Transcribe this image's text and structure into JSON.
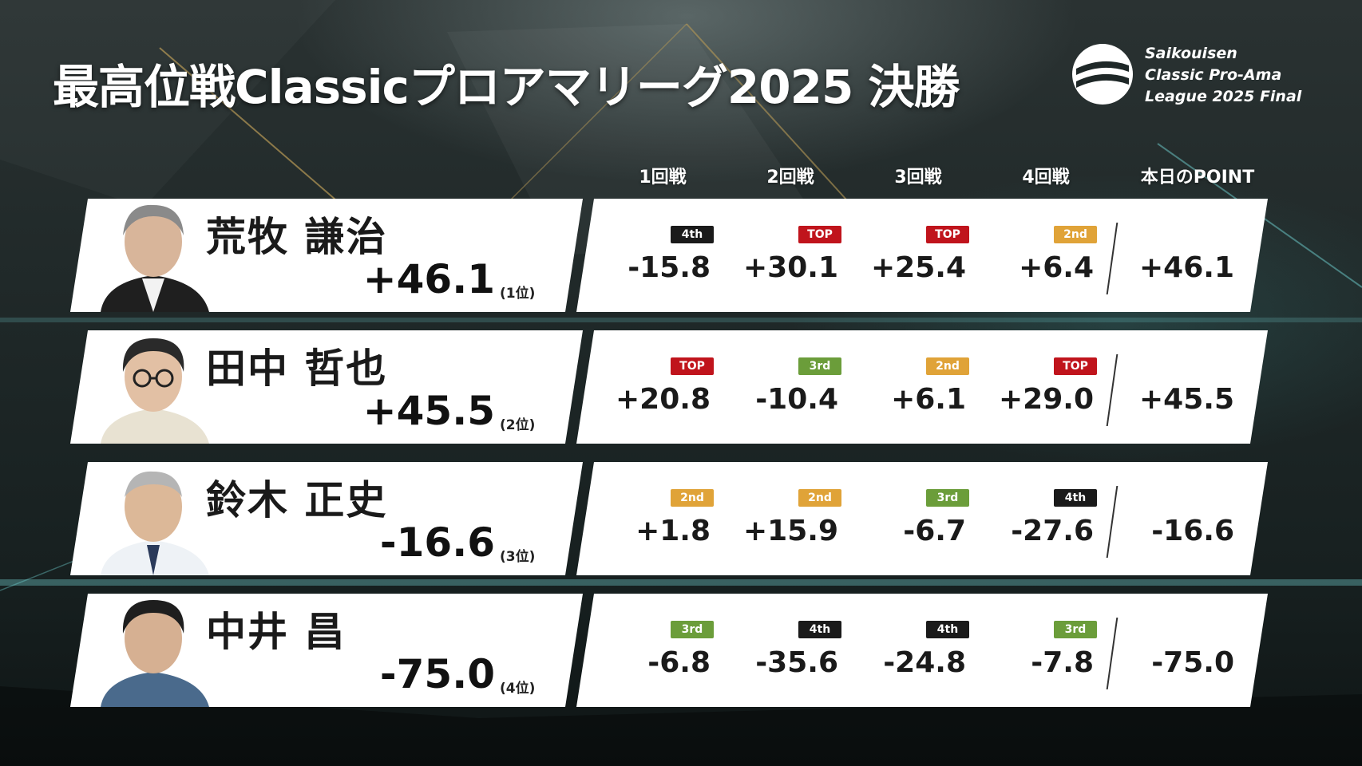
{
  "title": "最高位戦Classicプロアマリーグ2025 決勝",
  "logo": {
    "line1": "Saikouisen",
    "line2": "Classic Pro-Ama",
    "line3": "League 2025 Final"
  },
  "columns": [
    "1回戦",
    "2回戦",
    "3回戦",
    "4回戦",
    "本日のPOINT"
  ],
  "badge_colors": {
    "TOP": "#c0141c",
    "2nd": "#e0a338",
    "3rd": "#6b9d3a",
    "4th": "#1a1a1a"
  },
  "players": [
    {
      "name": "荒牧 謙治",
      "total": "+46.1",
      "rank": "(1位)",
      "games": [
        {
          "place": "4th",
          "score": "-15.8"
        },
        {
          "place": "TOP",
          "score": "+30.1"
        },
        {
          "place": "TOP",
          "score": "+25.4"
        },
        {
          "place": "2nd",
          "score": "+6.4"
        }
      ],
      "day_point": "+46.1"
    },
    {
      "name": "田中 哲也",
      "total": "+45.5",
      "rank": "(2位)",
      "games": [
        {
          "place": "TOP",
          "score": "+20.8"
        },
        {
          "place": "3rd",
          "score": "-10.4"
        },
        {
          "place": "2nd",
          "score": "+6.1"
        },
        {
          "place": "TOP",
          "score": "+29.0"
        }
      ],
      "day_point": "+45.5"
    },
    {
      "name": "鈴木 正史",
      "total": "-16.6",
      "rank": "(3位)",
      "games": [
        {
          "place": "2nd",
          "score": "+1.8"
        },
        {
          "place": "2nd",
          "score": "+15.9"
        },
        {
          "place": "3rd",
          "score": "-6.7"
        },
        {
          "place": "4th",
          "score": "-27.6"
        }
      ],
      "day_point": "-16.6"
    },
    {
      "name": "中井 昌",
      "total": "-75.0",
      "rank": "(4位)",
      "games": [
        {
          "place": "3rd",
          "score": "-6.8"
        },
        {
          "place": "4th",
          "score": "-35.6"
        },
        {
          "place": "4th",
          "score": "-24.8"
        },
        {
          "place": "3rd",
          "score": "-7.8"
        }
      ],
      "day_point": "-75.0"
    }
  ]
}
